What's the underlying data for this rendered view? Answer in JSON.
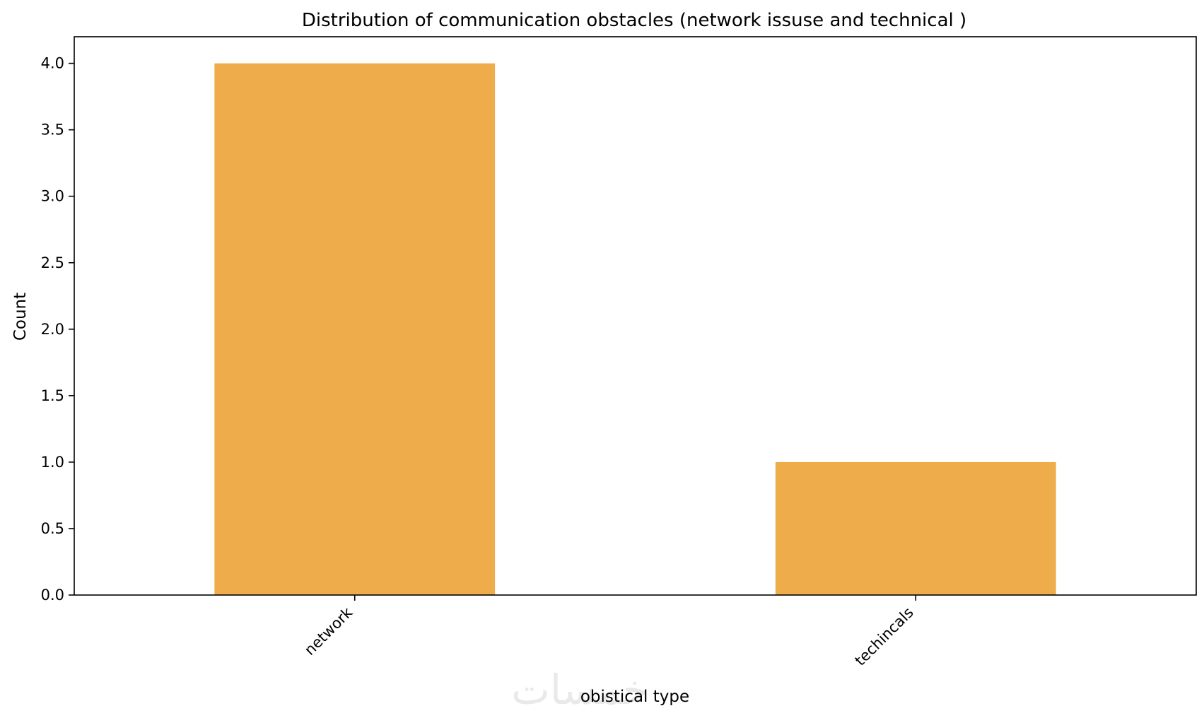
{
  "chart_data": {
    "type": "bar",
    "title": "Distribution of communication obstacles (network issuse and technical )",
    "xlabel": "obistical type",
    "ylabel": "Count",
    "categories": [
      "network",
      "techincals"
    ],
    "values": [
      4,
      1
    ],
    "ylim": [
      0,
      4.2
    ],
    "yticks": [
      0.0,
      0.5,
      1.0,
      1.5,
      2.0,
      2.5,
      3.0,
      3.5,
      4.0
    ],
    "ytick_labels": [
      "0.0",
      "0.5",
      "1.0",
      "1.5",
      "2.0",
      "2.5",
      "3.0",
      "3.5",
      "4.0"
    ],
    "bar_color": "#eeac4a",
    "grid": false,
    "legend": "none"
  },
  "watermark": "خمسات"
}
